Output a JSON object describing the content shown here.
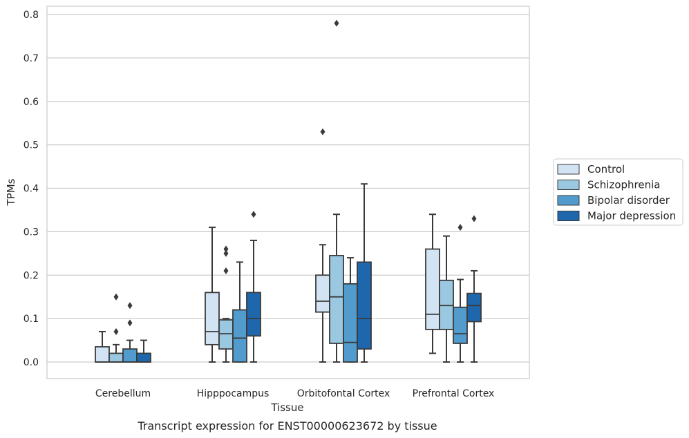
{
  "chart_data": {
    "type": "box",
    "title": "",
    "caption": "Transcript expression for ENST00000623672 by tissue",
    "xlabel": "Tissue",
    "ylabel": "TPMs",
    "ylim": [
      -0.038,
      0.82
    ],
    "yticks": [
      0.0,
      0.1,
      0.2,
      0.3,
      0.4,
      0.5,
      0.6,
      0.7,
      0.8
    ],
    "ytick_labels": [
      "0.0",
      "0.1",
      "0.2",
      "0.3",
      "0.4",
      "0.5",
      "0.6",
      "0.7",
      "0.8"
    ],
    "grid": "horizontal",
    "legend_placement": "right",
    "categories": [
      "Cerebellum",
      "Hipppocampus",
      "Orbitofontal Cortex",
      "Prefrontal Cortex"
    ],
    "series": [
      {
        "name": "Control",
        "color": "#d2e3f3",
        "boxes": [
          {
            "whislo": 0.0,
            "q1": 0.0,
            "med": 0.0,
            "q3": 0.035,
            "whishi": 0.07,
            "fliers": []
          },
          {
            "whislo": 0.0,
            "q1": 0.04,
            "med": 0.07,
            "q3": 0.16,
            "whishi": 0.31,
            "fliers": []
          },
          {
            "whislo": 0.0,
            "q1": 0.115,
            "med": 0.14,
            "q3": 0.2,
            "whishi": 0.27,
            "fliers": [
              0.53
            ]
          },
          {
            "whislo": 0.02,
            "q1": 0.075,
            "med": 0.11,
            "q3": 0.26,
            "whishi": 0.34,
            "fliers": []
          }
        ]
      },
      {
        "name": "Schizophrenia",
        "color": "#9ac8e0",
        "boxes": [
          {
            "whislo": 0.0,
            "q1": 0.0,
            "med": 0.0,
            "q3": 0.02,
            "whishi": 0.04,
            "fliers": [
              0.07,
              0.15
            ]
          },
          {
            "whislo": 0.0,
            "q1": 0.03,
            "med": 0.065,
            "q3": 0.097,
            "whishi": 0.1,
            "fliers": [
              0.21,
              0.25,
              0.26
            ]
          },
          {
            "whislo": 0.0,
            "q1": 0.043,
            "med": 0.15,
            "q3": 0.245,
            "whishi": 0.34,
            "fliers": [
              0.78
            ]
          },
          {
            "whislo": 0.0,
            "q1": 0.075,
            "med": 0.13,
            "q3": 0.188,
            "whishi": 0.29,
            "fliers": []
          }
        ]
      },
      {
        "name": "Bipolar disorder",
        "color": "#519ccc",
        "boxes": [
          {
            "whislo": 0.0,
            "q1": 0.0,
            "med": 0.0,
            "q3": 0.03,
            "whishi": 0.05,
            "fliers": [
              0.09,
              0.13
            ]
          },
          {
            "whislo": 0.0,
            "q1": 0.0,
            "med": 0.055,
            "q3": 0.12,
            "whishi": 0.23,
            "fliers": []
          },
          {
            "whislo": 0.0,
            "q1": 0.0,
            "med": 0.045,
            "q3": 0.18,
            "whishi": 0.24,
            "fliers": []
          },
          {
            "whislo": 0.0,
            "q1": 0.043,
            "med": 0.065,
            "q3": 0.126,
            "whishi": 0.19,
            "fliers": [
              0.31
            ]
          }
        ]
      },
      {
        "name": "Major depression",
        "color": "#1f67ad",
        "boxes": [
          {
            "whislo": 0.0,
            "q1": 0.0,
            "med": 0.0,
            "q3": 0.02,
            "whishi": 0.05,
            "fliers": []
          },
          {
            "whislo": 0.0,
            "q1": 0.06,
            "med": 0.1,
            "q3": 0.16,
            "whishi": 0.28,
            "fliers": [
              0.34
            ]
          },
          {
            "whislo": 0.0,
            "q1": 0.03,
            "med": 0.1,
            "q3": 0.23,
            "whishi": 0.41,
            "fliers": []
          },
          {
            "whislo": 0.0,
            "q1": 0.093,
            "med": 0.13,
            "q3": 0.158,
            "whishi": 0.21,
            "fliers": [
              0.33
            ]
          }
        ]
      }
    ]
  }
}
